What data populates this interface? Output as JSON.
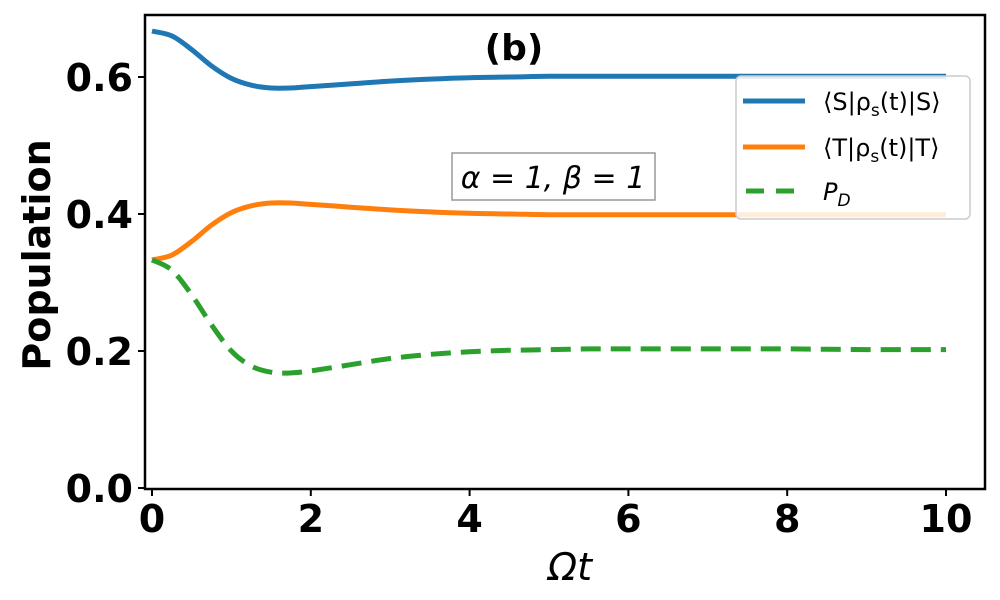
{
  "chart_data": {
    "type": "line",
    "title": "(b)",
    "annotation": "α = 1, β = 1",
    "xlabel": "Ωt",
    "ylabel": "Population",
    "xlim": [
      -0.1,
      10.5
    ],
    "ylim": [
      0.0,
      0.69
    ],
    "xticks": [
      0,
      2,
      4,
      6,
      8,
      10
    ],
    "xtick_labels": [
      "0",
      "2",
      "4",
      "6",
      "8",
      "10"
    ],
    "yticks": [
      0.0,
      0.2,
      0.4,
      0.6
    ],
    "ytick_labels": [
      "0.0",
      "0.2",
      "0.4",
      "0.6"
    ],
    "grid": false,
    "legend_position": "upper right",
    "x": [
      0,
      0.25,
      0.5,
      0.75,
      1.0,
      1.25,
      1.5,
      1.75,
      2.0,
      2.5,
      3.0,
      3.5,
      4.0,
      4.5,
      5.0,
      5.5,
      6.0,
      7.0,
      8.0,
      9.0,
      10.0
    ],
    "series": [
      {
        "name": "⟨S|ρs(t)|S⟩",
        "color": "#1f77b4",
        "style": "solid",
        "values": [
          0.667,
          0.66,
          0.64,
          0.616,
          0.598,
          0.588,
          0.584,
          0.584,
          0.586,
          0.59,
          0.594,
          0.597,
          0.599,
          0.6,
          0.601,
          0.601,
          0.601,
          0.601,
          0.601,
          0.601,
          0.601
        ]
      },
      {
        "name": "⟨T|ρs(t)|T⟩",
        "color": "#ff7f0e",
        "style": "solid",
        "values": [
          0.333,
          0.34,
          0.36,
          0.384,
          0.402,
          0.412,
          0.416,
          0.416,
          0.414,
          0.41,
          0.406,
          0.403,
          0.401,
          0.4,
          0.399,
          0.399,
          0.399,
          0.399,
          0.399,
          0.399,
          0.399
        ]
      },
      {
        "name": "P_D",
        "color": "#2ca02c",
        "style": "dashed",
        "values": [
          0.333,
          0.318,
          0.282,
          0.238,
          0.2,
          0.178,
          0.169,
          0.168,
          0.171,
          0.18,
          0.189,
          0.195,
          0.199,
          0.201,
          0.202,
          0.203,
          0.203,
          0.203,
          0.203,
          0.202,
          0.202
        ]
      }
    ]
  },
  "legend": {
    "items": [
      {
        "label_main": "⟨S|ρ",
        "label_sub": "s",
        "label_tail": "(t)|S⟩"
      },
      {
        "label_main": "⟨T|ρ",
        "label_sub": "s",
        "label_tail": "(t)|T⟩"
      },
      {
        "label_main": "P",
        "label_sub": "D",
        "label_tail": ""
      }
    ]
  }
}
